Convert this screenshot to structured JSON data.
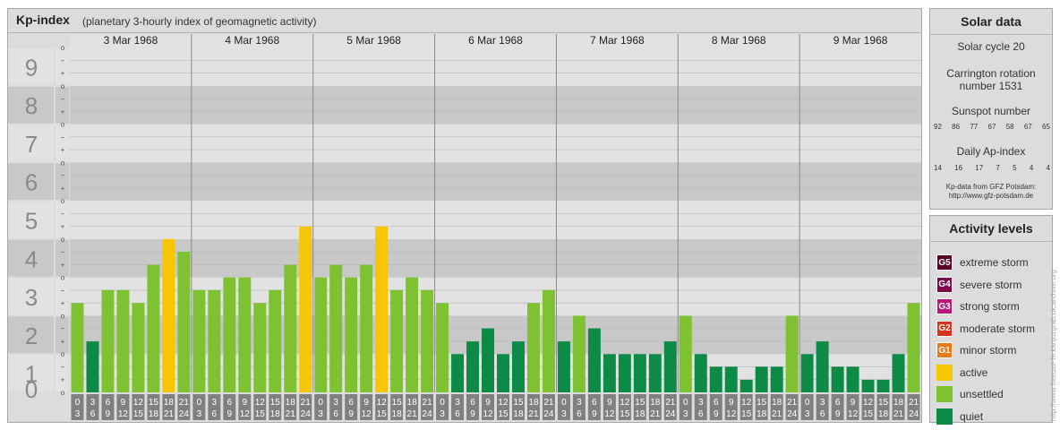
{
  "title": {
    "main": "Kp-index",
    "sub": "(planetary 3-hourly index of geomagnetic activity)"
  },
  "chart_data": {
    "type": "bar",
    "ylim": [
      0,
      9
    ],
    "y_ticks": [
      "0",
      "1",
      "2",
      "3",
      "4",
      "5",
      "6",
      "7",
      "8",
      "9"
    ],
    "minor_ticks": [
      "o",
      "+",
      "−",
      "o"
    ],
    "days": [
      "3 Mar 1968",
      "4 Mar 1968",
      "5 Mar 1968",
      "6 Mar 1968",
      "7 Mar 1968",
      "8 Mar 1968",
      "9 Mar 1968"
    ],
    "intervals": [
      {
        "top": "0",
        "bottom": "3"
      },
      {
        "top": "3",
        "bottom": "6"
      },
      {
        "top": "6",
        "bottom": "9"
      },
      {
        "top": "9",
        "bottom": "12"
      },
      {
        "top": "12",
        "bottom": "15"
      },
      {
        "top": "15",
        "bottom": "18"
      },
      {
        "top": "18",
        "bottom": "21"
      },
      {
        "top": "21",
        "bottom": "24"
      }
    ],
    "values": [
      2.33,
      1.33,
      2.67,
      2.67,
      2.33,
      3.33,
      4.0,
      3.67,
      2.67,
      2.67,
      3.0,
      3.0,
      2.33,
      2.67,
      3.33,
      4.33,
      3.0,
      3.33,
      3.0,
      3.33,
      4.33,
      2.67,
      3.0,
      2.67,
      2.33,
      1.0,
      1.33,
      1.67,
      1.0,
      1.33,
      2.33,
      2.67,
      1.33,
      2.0,
      1.67,
      1.0,
      1.0,
      1.0,
      1.0,
      1.33,
      2.0,
      1.0,
      0.67,
      0.67,
      0.33,
      0.67,
      0.67,
      2.0,
      1.0,
      1.33,
      0.67,
      0.67,
      0.33,
      0.33,
      1.0,
      2.33
    ],
    "colors": {
      "quiet": "#0e8a47",
      "unsettled": "#7ec232",
      "active": "#f7c600",
      "band_dark": "#c8c8c8",
      "band_light": "#e2e2e2",
      "tick_box": "#808080"
    }
  },
  "solar": {
    "head": "Solar data",
    "cycle": "Solar cycle 20",
    "carrington_line1": "Carrington rotation",
    "carrington_line2": "number 1531",
    "sunspot_label": "Sunspot number",
    "sunspot_values": [
      "92",
      "86",
      "77",
      "67",
      "58",
      "67",
      "65"
    ],
    "ap_label": "Daily Ap-index",
    "ap_values": [
      "14",
      "16",
      "17",
      "7",
      "5",
      "4",
      "4"
    ],
    "source_line1": "Kp-data from GFZ Potsdam:",
    "source_line2": "http://www.gfz-potsdam.de"
  },
  "levels": {
    "head": "Activity levels",
    "items": [
      {
        "code": "G5",
        "label": "extreme storm",
        "color": "#5a0028"
      },
      {
        "code": "G4",
        "label": "severe storm",
        "color": "#7a0a4a"
      },
      {
        "code": "G3",
        "label": "strong storm",
        "color": "#b8187a"
      },
      {
        "code": "G2",
        "label": "moderate storm",
        "color": "#d8341e"
      },
      {
        "code": "G1",
        "label": "minor storm",
        "color": "#e87a1a"
      },
      {
        "code": "",
        "label": "active",
        "color": "#f7c600"
      },
      {
        "code": "",
        "label": "unsettled",
        "color": "#7ec232"
      },
      {
        "code": "",
        "label": "quiet",
        "color": "#0e8a47"
      }
    ]
  },
  "credit": "http://www.freeuse-fe.kanjuzgrab.uk.archive.org"
}
